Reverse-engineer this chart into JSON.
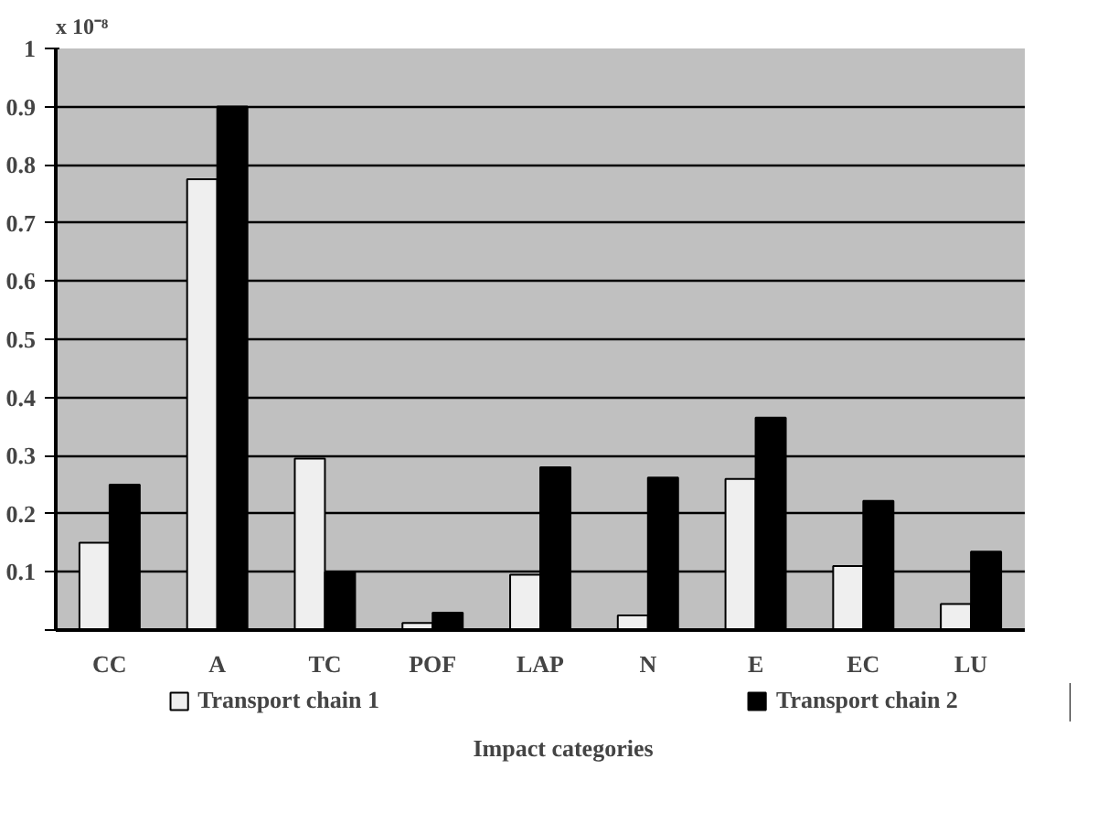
{
  "chart_data": {
    "type": "bar",
    "xlabel": "Impact categories",
    "annotations": [
      "x 10⁻⁸"
    ],
    "categories": [
      "CC",
      "A",
      "TC",
      "POF",
      "LAP",
      "N",
      "E",
      "EC",
      "LU"
    ],
    "series": [
      {
        "name": "Transport chain 1",
        "color": "#efefef",
        "values": [
          0.15,
          0.775,
          0.295,
          0.012,
          0.095,
          0.025,
          0.26,
          0.11,
          0.045
        ]
      },
      {
        "name": "Transport chain 2",
        "color": "#000000",
        "values": [
          0.25,
          0.9,
          0.1,
          0.03,
          0.28,
          0.262,
          0.365,
          0.222,
          0.135
        ]
      }
    ],
    "ylim": [
      0,
      1
    ],
    "yticks": [
      {
        "value": 0,
        "label": null
      },
      0.1,
      0.2,
      0.3,
      0.4,
      0.5,
      0.6,
      0.7,
      0.8,
      0.9,
      1
    ],
    "grid": "y",
    "legend": "bottom"
  }
}
